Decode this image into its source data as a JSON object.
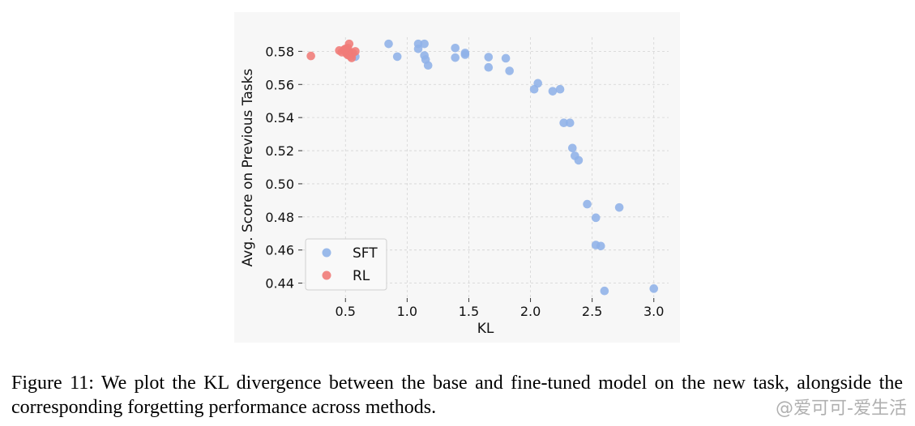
{
  "chart_data": {
    "type": "scatter",
    "xlabel": "KL",
    "ylabel": "Avg. Score on Previous Tasks",
    "xlim": [
      0.15,
      3.12
    ],
    "ylim": [
      0.431,
      0.5885
    ],
    "xticks": [
      0.5,
      1.0,
      1.5,
      2.0,
      2.5,
      3.0
    ],
    "xtick_labels": [
      "0.5",
      "1.0",
      "1.5",
      "2.0",
      "2.5",
      "3.0"
    ],
    "yticks": [
      0.44,
      0.46,
      0.48,
      0.5,
      0.52,
      0.54,
      0.56,
      0.58
    ],
    "ytick_labels": [
      "0.44",
      "0.46",
      "0.48",
      "0.50",
      "0.52",
      "0.54",
      "0.56",
      "0.58"
    ],
    "grid": true,
    "legend_position": "lower-left",
    "series": [
      {
        "name": "SFT",
        "color": "#8fb2e8",
        "points": [
          [
            0.85,
            0.5845
          ],
          [
            0.92,
            0.5768
          ],
          [
            1.09,
            0.5845
          ],
          [
            1.09,
            0.5815
          ],
          [
            1.14,
            0.5845
          ],
          [
            1.14,
            0.5775
          ],
          [
            1.15,
            0.575
          ],
          [
            1.17,
            0.5715
          ],
          [
            1.39,
            0.582
          ],
          [
            1.39,
            0.5762
          ],
          [
            1.47,
            0.579
          ],
          [
            1.47,
            0.578
          ],
          [
            1.66,
            0.5765
          ],
          [
            1.66,
            0.5703
          ],
          [
            1.8,
            0.5758
          ],
          [
            1.83,
            0.5682
          ],
          [
            2.03,
            0.5571
          ],
          [
            2.06,
            0.5607
          ],
          [
            2.18,
            0.5559
          ],
          [
            2.24,
            0.5571
          ],
          [
            2.27,
            0.5368
          ],
          [
            2.32,
            0.5368
          ],
          [
            2.34,
            0.5216
          ],
          [
            2.36,
            0.5169
          ],
          [
            2.39,
            0.5142
          ],
          [
            2.46,
            0.4877
          ],
          [
            2.53,
            0.4795
          ],
          [
            2.53,
            0.463
          ],
          [
            2.57,
            0.4624
          ],
          [
            2.6,
            0.4353
          ],
          [
            2.72,
            0.4857
          ],
          [
            3.0,
            0.4367
          ],
          [
            0.58,
            0.5768
          ],
          [
            0.53,
            0.579
          ]
        ]
      },
      {
        "name": "RL",
        "color": "#f07b78",
        "points": [
          [
            0.22,
            0.5772
          ],
          [
            0.45,
            0.5805
          ],
          [
            0.47,
            0.5795
          ],
          [
            0.49,
            0.581
          ],
          [
            0.5,
            0.58
          ],
          [
            0.51,
            0.5785
          ],
          [
            0.52,
            0.582
          ],
          [
            0.52,
            0.5778
          ],
          [
            0.53,
            0.5845
          ],
          [
            0.53,
            0.5795
          ],
          [
            0.54,
            0.577
          ],
          [
            0.55,
            0.576
          ],
          [
            0.56,
            0.579
          ],
          [
            0.58,
            0.58
          ],
          [
            0.5,
            0.5815
          ]
        ]
      }
    ]
  },
  "caption": "Figure 11: We plot the KL divergence between the base and fine-tuned model on the new task, alongside the corresponding forgetting performance across methods.",
  "watermark": "@爱可可-爱生活"
}
